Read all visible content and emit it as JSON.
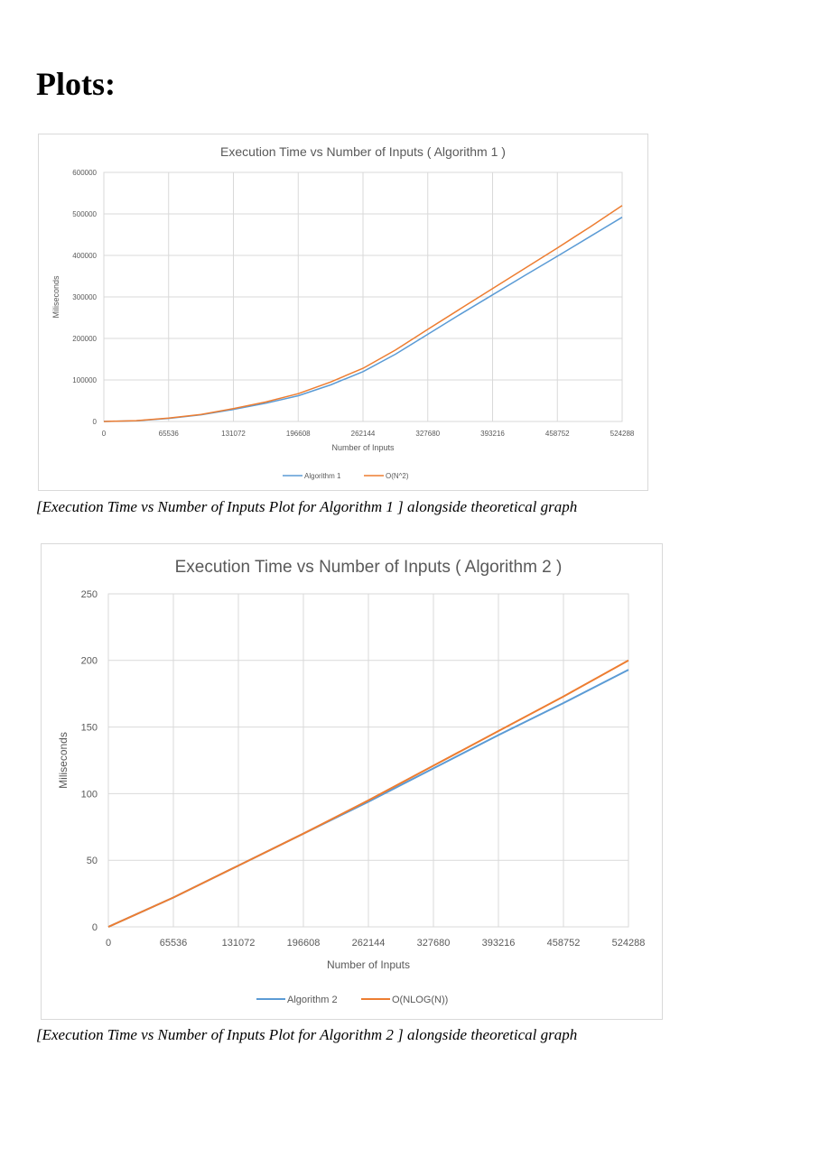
{
  "page": {
    "heading": "Plots:"
  },
  "captions": [
    "[Execution Time vs Number of Inputs Plot for Algorithm 1 ] alongside theoretical graph",
    "[Execution Time vs Number of Inputs Plot for Algorithm 2 ] alongside theoretical graph"
  ],
  "colors": {
    "series_blue": "#5b9bd5",
    "series_orange": "#ed7d31",
    "grid": "#d9d9d9",
    "text": "#595959"
  },
  "chart_data": [
    {
      "type": "line",
      "title": "Execution Time vs Number of Inputs ( Algorithm 1 )",
      "xlabel": "Number of Inputs",
      "ylabel": "Miliseconds",
      "xlim": [
        0,
        524288
      ],
      "ylim": [
        0,
        600000
      ],
      "xticks": [
        0,
        65536,
        131072,
        196608,
        262144,
        327680,
        393216,
        458752,
        524288
      ],
      "yticks": [
        0,
        100000,
        200000,
        300000,
        400000,
        500000,
        600000
      ],
      "grid": true,
      "legend": "bottom",
      "x": [
        0,
        32768,
        65536,
        98304,
        131072,
        163840,
        196608,
        229376,
        262144,
        294912,
        327680,
        360448,
        393216,
        425984,
        458752,
        491520,
        524288
      ],
      "series": [
        {
          "name": "Algorithm 1",
          "color": "#5b9bd5",
          "values": [
            0,
            1800,
            7500,
            16000,
            29000,
            44000,
            62000,
            88000,
            120000,
            162000,
            210000,
            258000,
            305000,
            352000,
            398000,
            445000,
            492000
          ]
        },
        {
          "name": "O(N^2)",
          "color": "#ed7d31",
          "values": [
            0,
            2000,
            8000,
            17000,
            31000,
            47000,
            67000,
            95000,
            128000,
            172000,
            222000,
            271000,
            320000,
            369000,
            418000,
            468000,
            520000
          ]
        }
      ]
    },
    {
      "type": "line",
      "title": "Execution Time vs Number of Inputs ( Algorithm 2 )",
      "xlabel": "Number of Inputs",
      "ylabel": "Miliseconds",
      "xlim": [
        0,
        524288
      ],
      "ylim": [
        0,
        250
      ],
      "xticks": [
        0,
        65536,
        131072,
        196608,
        262144,
        327680,
        393216,
        458752,
        524288
      ],
      "yticks": [
        0,
        50,
        100,
        150,
        200,
        250
      ],
      "grid": true,
      "legend": "bottom",
      "x": [
        0,
        65536,
        131072,
        196608,
        262144,
        327680,
        393216,
        458752,
        524288
      ],
      "series": [
        {
          "name": "Algorithm 2",
          "color": "#5b9bd5",
          "values": [
            0,
            22,
            46,
            70,
            94,
            119,
            144,
            168,
            193
          ]
        },
        {
          "name": "O(NLOG(N))",
          "color": "#ed7d31",
          "values": [
            0,
            22,
            46,
            70,
            95,
            121,
            147,
            173,
            200
          ]
        }
      ]
    }
  ]
}
